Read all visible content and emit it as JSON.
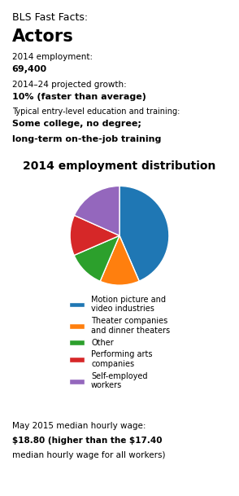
{
  "chart_data": {
    "type": "pie",
    "title": "2014 employment distribution",
    "header_texts": [
      "BLS Fast Facts:",
      "Actors",
      "2014 employment:",
      "69,400",
      "2014–24 projected growth:",
      "10% (faster than average)",
      "Typical entry-level education and training:",
      "Some college, no degree;",
      "long-term on-the-job training"
    ],
    "categories": [
      "Motion picture and\nvideo industries",
      "Theater companies\nand dinner theaters",
      "Other",
      "Performing arts\ncompanies",
      "Self-employed\nworkers"
    ],
    "values": [
      43.5,
      12.9,
      12.1,
      13.2,
      18.3
    ],
    "legend": "lower center",
    "footer_texts": [
      "May 2015 median hourly wage:",
      "$18.80 (higher than the $17.40",
      "median hourly wage for all workers)"
    ]
  }
}
